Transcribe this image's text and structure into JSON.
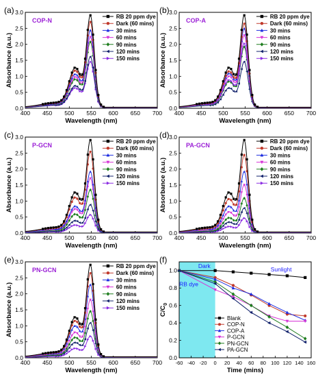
{
  "colors": {
    "purple_tag": "#9b1fd6",
    "cyan_region": "#7ee8f0",
    "blue_anno": "#1a1aff"
  },
  "spectra_panels": [
    {
      "letter": "(a)",
      "tag": "COP-N"
    },
    {
      "letter": "(b)",
      "tag": "COP-A"
    },
    {
      "letter": "(c)",
      "tag": "P-GCN"
    },
    {
      "letter": "(d)",
      "tag": "PA-GCN"
    },
    {
      "letter": "(e)",
      "tag": "PN-GCN"
    }
  ],
  "kinetics_panel": {
    "letter": "(f)"
  },
  "chart_data": [
    {
      "type": "line",
      "panel": "(a)",
      "tag": "COP-N",
      "xlabel": "Wavelength (nm)",
      "ylabel": "Absorbance (a.u.)",
      "xlim": [
        400,
        700
      ],
      "ylim": [
        0.0,
        3.0
      ],
      "xticks": [
        "400",
        "450",
        "500",
        "550",
        "600",
        "650",
        "700"
      ],
      "yticks": [
        "0.0",
        "0.5",
        "1.0",
        "1.5",
        "2.0",
        "2.5",
        "3.0"
      ],
      "legend_position": "top-right",
      "series": [
        {
          "name": "RB 20 ppm dye",
          "peak": 2.8,
          "color": "#000000",
          "marker": "square"
        },
        {
          "name": "Dark (60 mins)",
          "peak": 2.6,
          "color": "#c0392b",
          "marker": "circle"
        },
        {
          "name": "30 mins",
          "peak": 2.35,
          "color": "#1f2fe0",
          "marker": "triangle-up"
        },
        {
          "name": "60 mins",
          "peak": 2.15,
          "color": "#d633d6",
          "marker": "triangle-down"
        },
        {
          "name": "90 mins",
          "peak": 2.0,
          "color": "#1e7d1e",
          "marker": "diamond"
        },
        {
          "name": "120 mins",
          "peak": 1.55,
          "color": "#10206b",
          "marker": "triangle-left"
        },
        {
          "name": "150 mins",
          "peak": 1.4,
          "color": "#8a2be2",
          "marker": "triangle-right"
        }
      ]
    },
    {
      "type": "line",
      "panel": "(b)",
      "tag": "COP-A",
      "xlabel": "Wavelength (nm)",
      "ylabel": "Absorbance (a.u.)",
      "xlim": [
        400,
        700
      ],
      "ylim": [
        0.0,
        3.0
      ],
      "xticks": [
        "400",
        "450",
        "500",
        "550",
        "600",
        "650",
        "700"
      ],
      "yticks": [
        "0.0",
        "0.5",
        "1.0",
        "1.5",
        "2.0",
        "2.5",
        "3.0"
      ],
      "legend_position": "top-right",
      "series": [
        {
          "name": "RB 20 ppm dye",
          "peak": 2.8,
          "color": "#000000",
          "marker": "square"
        },
        {
          "name": "Dark (60 mins)",
          "peak": 2.55,
          "color": "#c0392b",
          "marker": "circle"
        },
        {
          "name": "30 mins",
          "peak": 2.4,
          "color": "#1f2fe0",
          "marker": "triangle-up"
        },
        {
          "name": "60 mins",
          "peak": 2.2,
          "color": "#d633d6",
          "marker": "triangle-down"
        },
        {
          "name": "90 mins",
          "peak": 1.85,
          "color": "#1e7d1e",
          "marker": "diamond"
        },
        {
          "name": "120 mins",
          "peak": 1.4,
          "color": "#10206b",
          "marker": "triangle-left"
        },
        {
          "name": "150 mins",
          "peak": 1.95,
          "color": "#8a2be2",
          "marker": "triangle-right"
        }
      ]
    },
    {
      "type": "line",
      "panel": "(c)",
      "tag": "P-GCN",
      "xlabel": "Wavelength (nm)",
      "ylabel": "Absorbance (a.u.)",
      "xlim": [
        400,
        700
      ],
      "ylim": [
        0.0,
        3.0
      ],
      "xticks": [
        "400",
        "450",
        "500",
        "550",
        "600",
        "650",
        "700"
      ],
      "yticks": [
        "0.0",
        "0.5",
        "1.0",
        "1.5",
        "2.0",
        "2.5",
        "3.0"
      ],
      "legend_position": "top-right",
      "series": [
        {
          "name": "RB 20 ppm dye",
          "peak": 2.8,
          "color": "#000000",
          "marker": "square"
        },
        {
          "name": "Dark (60 mins)",
          "peak": 2.45,
          "color": "#c0392b",
          "marker": "circle"
        },
        {
          "name": "30 mins",
          "peak": 1.85,
          "color": "#1f2fe0",
          "marker": "triangle-up"
        },
        {
          "name": "60 mins",
          "peak": 1.65,
          "color": "#d633d6",
          "marker": "triangle-down"
        },
        {
          "name": "90 mins",
          "peak": 1.3,
          "color": "#1e7d1e",
          "marker": "diamond"
        },
        {
          "name": "120 mins",
          "peak": 0.85,
          "color": "#10206b",
          "marker": "triangle-left"
        },
        {
          "name": "150 mins",
          "peak": 0.55,
          "color": "#8a2be2",
          "marker": "triangle-right"
        }
      ]
    },
    {
      "type": "line",
      "panel": "(d)",
      "tag": "PA-GCN",
      "xlabel": "Wavelength (nm)",
      "ylabel": "Absorbance (a.u.)",
      "xlim": [
        400,
        700
      ],
      "ylim": [
        0.0,
        3.0
      ],
      "xticks": [
        "400",
        "450",
        "500",
        "550",
        "600",
        "650",
        "700"
      ],
      "yticks": [
        "0.0",
        "0.5",
        "1.0",
        "1.5",
        "2.0",
        "2.5",
        "3.0"
      ],
      "legend_position": "top-right",
      "series": [
        {
          "name": "RB 20 ppm dye",
          "peak": 2.8,
          "color": "#000000",
          "marker": "square"
        },
        {
          "name": "Dark (60 mins)",
          "peak": 2.35,
          "color": "#c0392b",
          "marker": "circle"
        },
        {
          "name": "30 mins",
          "peak": 1.85,
          "color": "#1f2fe0",
          "marker": "triangle-up"
        },
        {
          "name": "60 mins",
          "peak": 1.45,
          "color": "#d633d6",
          "marker": "triangle-down"
        },
        {
          "name": "90 mins",
          "peak": 1.05,
          "color": "#1e7d1e",
          "marker": "diamond"
        },
        {
          "name": "120 mins",
          "peak": 0.75,
          "color": "#10206b",
          "marker": "triangle-left"
        },
        {
          "name": "150 mins",
          "peak": 0.45,
          "color": "#8a2be2",
          "marker": "triangle-right"
        }
      ]
    },
    {
      "type": "line",
      "panel": "(e)",
      "tag": "PN-GCN",
      "xlabel": "Wavelength (nm)",
      "ylabel": "Absorbance (a.u.)",
      "xlim": [
        400,
        700
      ],
      "ylim": [
        0.0,
        3.0
      ],
      "xticks": [
        "400",
        "450",
        "500",
        "550",
        "600",
        "650",
        "700"
      ],
      "yticks": [
        "0.0",
        "0.5",
        "1.0",
        "1.5",
        "2.0",
        "2.5",
        "3.0"
      ],
      "legend_position": "top-right",
      "series": [
        {
          "name": "RB 20 ppm dye",
          "peak": 2.8,
          "color": "#000000",
          "marker": "square"
        },
        {
          "name": "Dark (60 mins)",
          "peak": 2.55,
          "color": "#c0392b",
          "marker": "circle"
        },
        {
          "name": "30 mins",
          "peak": 2.2,
          "color": "#1f2fe0",
          "marker": "triangle-up"
        },
        {
          "name": "60 mins",
          "peak": 1.75,
          "color": "#d633d6",
          "marker": "triangle-down"
        },
        {
          "name": "90 mins",
          "peak": 1.4,
          "color": "#1e7d1e",
          "marker": "diamond"
        },
        {
          "name": "120 mins",
          "peak": 1.05,
          "color": "#10206b",
          "marker": "triangle-left"
        },
        {
          "name": "150 mins",
          "peak": 0.65,
          "color": "#8a2be2",
          "marker": "triangle-right"
        }
      ]
    },
    {
      "type": "line",
      "panel": "(f)",
      "xlabel": "Time (mins)",
      "ylabel": "C/C0",
      "xlim": [
        -60,
        160
      ],
      "ylim": [
        0.0,
        1.1
      ],
      "xticks": [
        "-60",
        "-40",
        "-20",
        "0",
        "20",
        "40",
        "60",
        "80",
        "100",
        "120",
        "140",
        "160"
      ],
      "yticks": [
        "0.0",
        "0.2",
        "0.4",
        "0.6",
        "0.8",
        "1.0"
      ],
      "annotations": {
        "dark": "Dark",
        "sunlight": "Sunlight",
        "rb_dye": "RB dye"
      },
      "shaded_region_x": [
        -60,
        0
      ],
      "legend_position": "bottom-left",
      "x": [
        -60,
        0,
        30,
        60,
        90,
        120,
        150
      ],
      "series": [
        {
          "name": "Blank",
          "values": [
            1.0,
            1.0,
            0.985,
            0.97,
            0.955,
            0.94,
            0.92
          ],
          "color": "#000000",
          "marker": "square"
        },
        {
          "name": "COP-N",
          "values": [
            1.0,
            0.92,
            0.83,
            0.72,
            0.6,
            0.5,
            0.48
          ],
          "color": "#c0392b",
          "marker": "circle"
        },
        {
          "name": "COP-A",
          "values": [
            1.0,
            0.9,
            0.8,
            0.73,
            0.62,
            0.52,
            0.43
          ],
          "color": "#1f2fe0",
          "marker": "triangle-up"
        },
        {
          "name": "P-GCN",
          "values": [
            1.0,
            0.78,
            0.7,
            0.6,
            0.48,
            0.42,
            0.42
          ],
          "color": "#d633d6",
          "marker": "triangle-down"
        },
        {
          "name": "PN-GCN",
          "values": [
            1.0,
            0.87,
            0.73,
            0.6,
            0.47,
            0.35,
            0.22
          ],
          "color": "#1e7d1e",
          "marker": "diamond"
        },
        {
          "name": "PA-GCN",
          "values": [
            1.0,
            0.85,
            0.68,
            0.52,
            0.4,
            0.3,
            0.18
          ],
          "color": "#10206b",
          "marker": "triangle-left"
        }
      ]
    }
  ]
}
